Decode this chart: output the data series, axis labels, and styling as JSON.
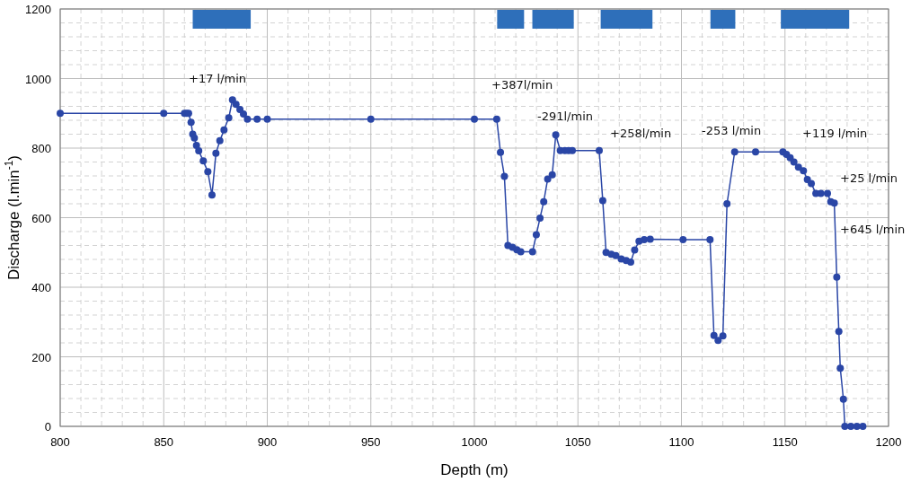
{
  "chart_data": {
    "type": "line",
    "xlabel": "Depth (m)",
    "ylabel": "Discharge (l.min$^{-1}$)",
    "xlim": [
      800,
      1200
    ],
    "xticks": [
      800,
      850,
      900,
      950,
      1000,
      1050,
      1100,
      1150,
      1200
    ],
    "ylim": [
      0,
      1200
    ],
    "yticks": [
      0,
      200,
      400,
      600,
      800,
      1000,
      1200
    ],
    "grid": true,
    "marker": "circle",
    "line_style": "solid",
    "series": [
      {
        "color": "#2a46a6",
        "x": [
          800,
          850,
          860,
          861,
          862,
          863.2,
          864,
          864.8,
          865.8,
          866.9,
          869.1,
          871.3,
          873.3,
          875.2,
          877.1,
          879.1,
          881.4,
          883.2,
          884.9,
          886.8,
          888.5,
          890.4,
          895.1,
          900,
          950,
          1000,
          1010.8,
          1012.6,
          1014.5,
          1016.2,
          1018.4,
          1020.5,
          1022.4,
          1028.1,
          1029.9,
          1031.7,
          1033.5,
          1035.4,
          1037.6,
          1039.3,
          1041.5,
          1043.7,
          1045.5,
          1047.3,
          1060.3,
          1062,
          1063.6,
          1066.1,
          1068.3,
          1070.9,
          1073.3,
          1075.5,
          1077.4,
          1079.5,
          1082,
          1084.9,
          1100.8,
          1113.8,
          1115.7,
          1117.7,
          1120,
          1122,
          1125.7,
          1135.8,
          1149,
          1150.7,
          1152.5,
          1154.3,
          1156.5,
          1158.9,
          1160.8,
          1162.7,
          1164.9,
          1167.3,
          1170.5,
          1172.1,
          1173.8,
          1175,
          1176,
          1176.7,
          1178.2,
          1178.9,
          1181.8,
          1184.7,
          1187.6
        ],
        "values": [
          900,
          900,
          900,
          900,
          900,
          874,
          840,
          829,
          808,
          792,
          763,
          732,
          665,
          785,
          821,
          852,
          887,
          939,
          926,
          911,
          898,
          883,
          883,
          883,
          883,
          883,
          883,
          788,
          719,
          520,
          515,
          508,
          502,
          502,
          551,
          599,
          646,
          711,
          723,
          838,
          793,
          793,
          793,
          793,
          793,
          649,
          500,
          495,
          491,
          481,
          477,
          472,
          507,
          532,
          537,
          538,
          537,
          537,
          261,
          247,
          260,
          640,
          789,
          789,
          789,
          782,
          772,
          760,
          745,
          735,
          710,
          698,
          670,
          670,
          670,
          646,
          642,
          429,
          273,
          167,
          78,
          0,
          0,
          0,
          0
        ]
      }
    ],
    "bands": [
      {
        "axis": "x",
        "from": 864,
        "to": 892,
        "color": "#2e6fba"
      },
      {
        "axis": "x",
        "from": 1011,
        "to": 1024,
        "color": "#2e6fba"
      },
      {
        "axis": "x",
        "from": 1028,
        "to": 1048,
        "color": "#2e6fba"
      },
      {
        "axis": "x",
        "from": 1061,
        "to": 1086,
        "color": "#2e6fba"
      },
      {
        "axis": "x",
        "from": 1114,
        "to": 1126,
        "color": "#2e6fba"
      },
      {
        "axis": "x",
        "from": 1148,
        "to": 1181,
        "color": "#2e6fba"
      }
    ],
    "annotations": [
      "+17 l/min",
      "+387l/min",
      "-291l/min",
      "+258l/min",
      "-253 l/min",
      "+119 l/min",
      "+25 l/min",
      "+645 l/min"
    ]
  }
}
